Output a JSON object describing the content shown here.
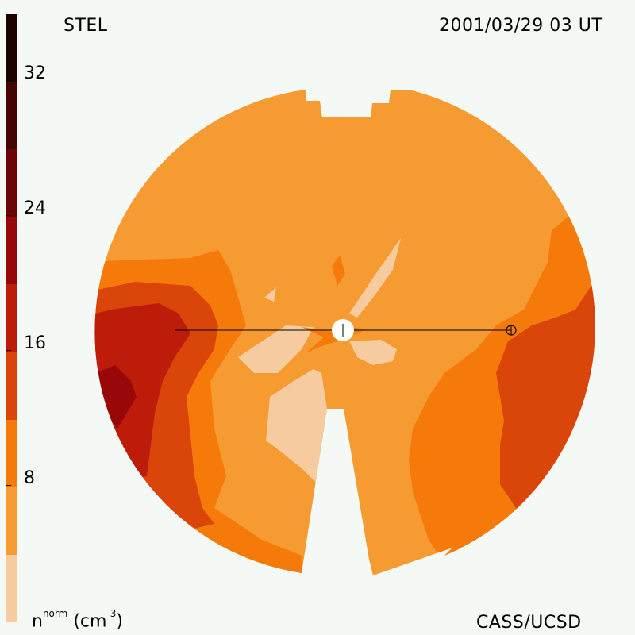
{
  "header": {
    "observatory": "STEL",
    "timestamp": "2001/03/29 03 UT"
  },
  "footer": {
    "unit_base": "n",
    "unit_sup": "norm",
    "unit_rest": "(cm",
    "unit_exp": "-3",
    "unit_close": ")",
    "credit": "CASS/UCSD"
  },
  "colorbar": {
    "ticks": [
      "32",
      "24",
      "16",
      "8"
    ],
    "levels": [
      {
        "from": 0,
        "to": 4,
        "color": "#f7cba0"
      },
      {
        "from": 4,
        "to": 8,
        "color": "#f69a32"
      },
      {
        "from": 8,
        "to": 12,
        "color": "#f57a0a"
      },
      {
        "from": 12,
        "to": 16,
        "color": "#da460a"
      },
      {
        "from": 16,
        "to": 20,
        "color": "#bd1c0a"
      },
      {
        "from": 20,
        "to": 24,
        "color": "#980808"
      },
      {
        "from": 24,
        "to": 28,
        "color": "#6c0606"
      },
      {
        "from": 28,
        "to": 32,
        "color": "#450505"
      },
      {
        "from": 32,
        "to": 36,
        "color": "#1e0202"
      }
    ]
  },
  "map_legend": {
    "sun_symbol": "sun-marker",
    "earth_symbol": "earth-marker"
  }
}
